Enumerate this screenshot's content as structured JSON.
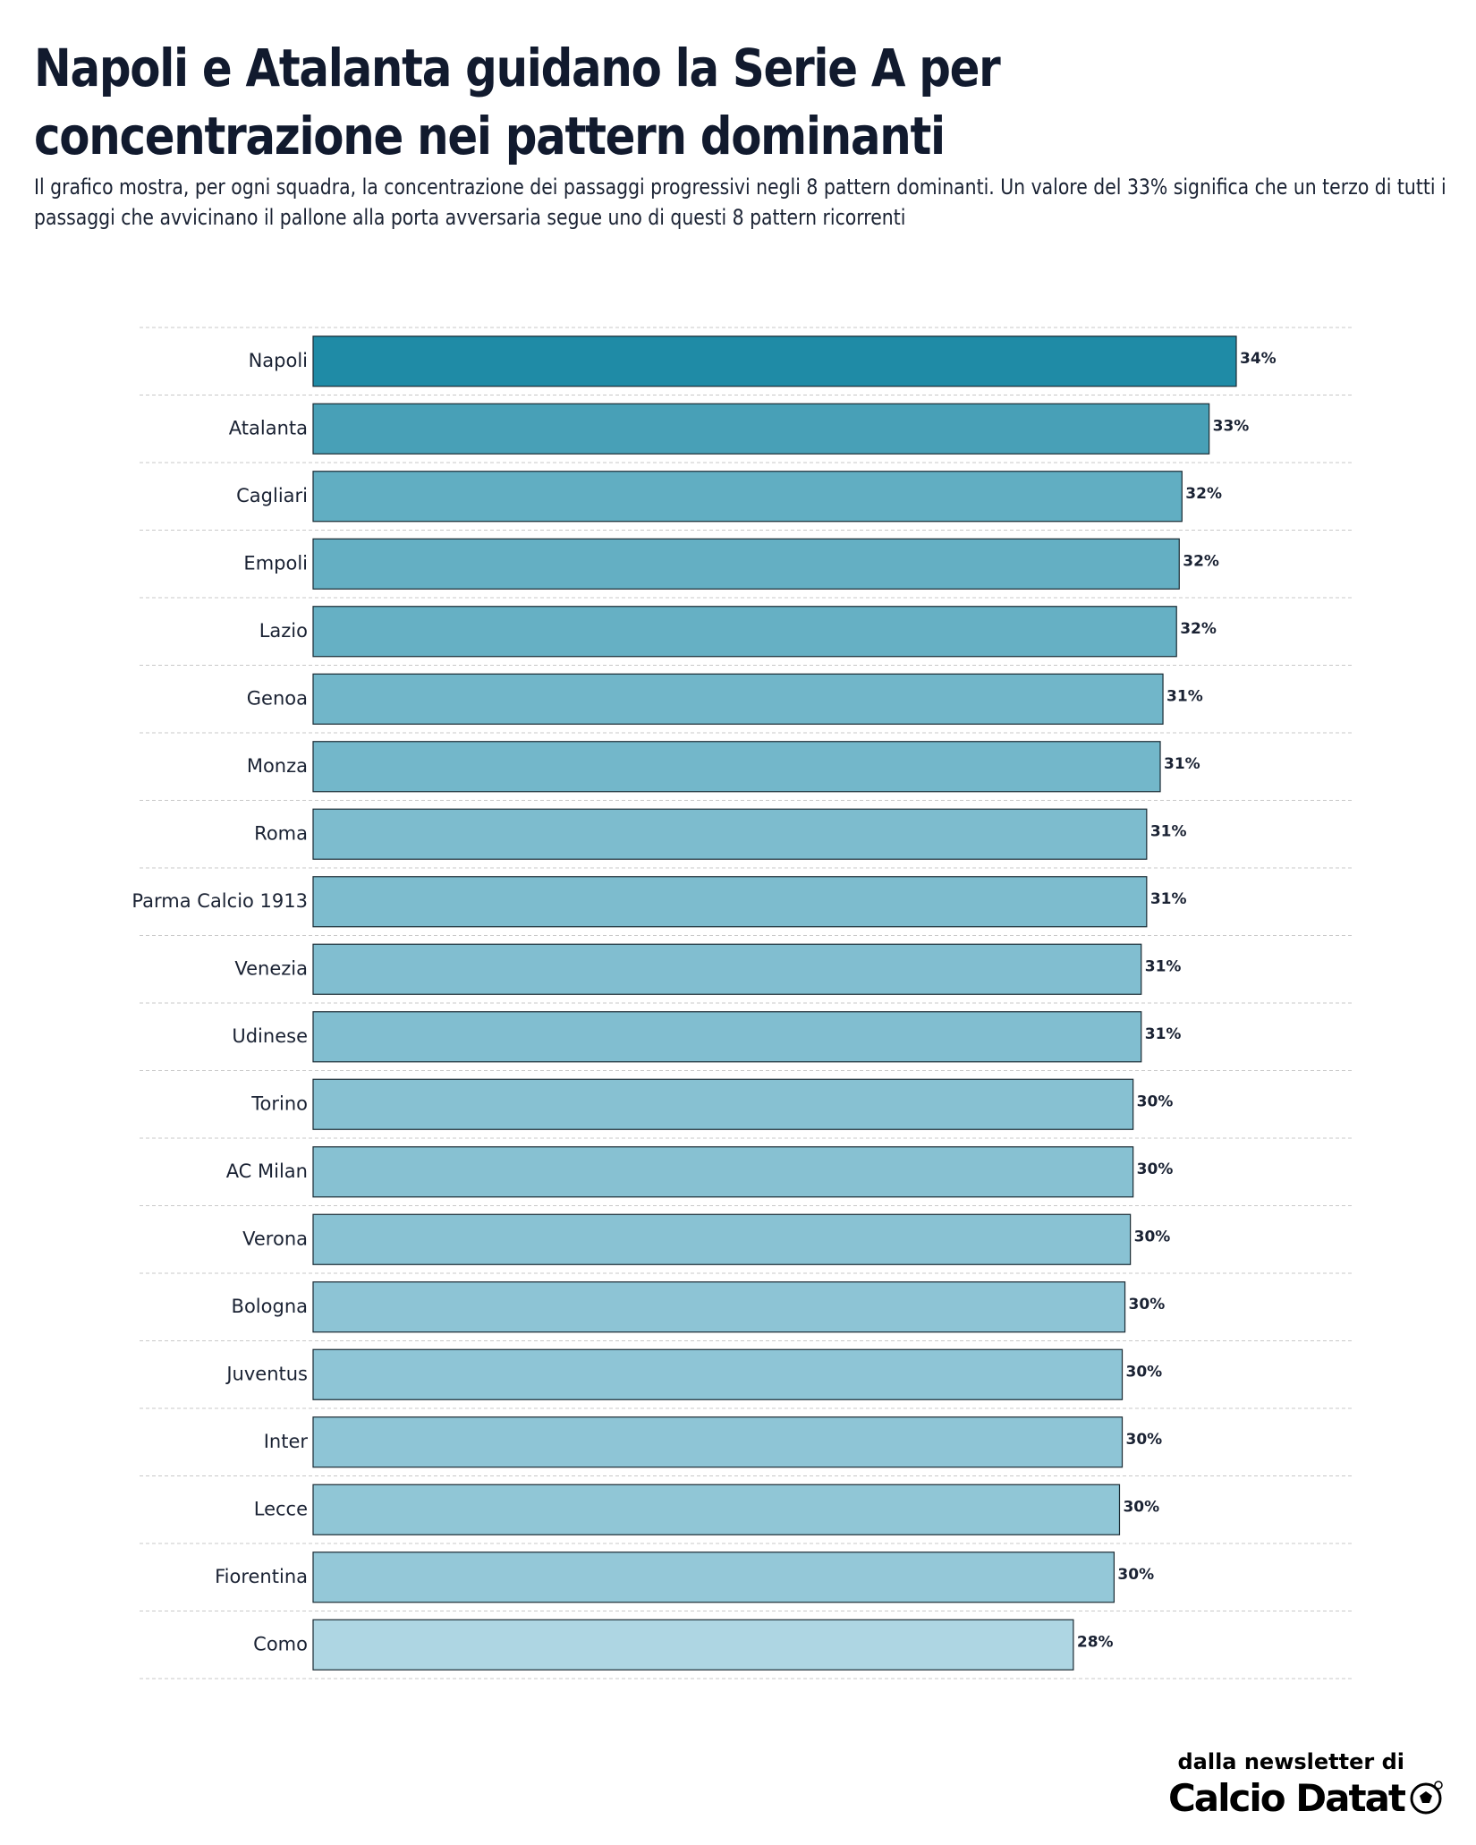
{
  "title": "Napoli e Atalanta guidano la Serie A per concentrazione nei pattern dominanti",
  "subtitle": "Il grafico mostra, per ogni squadra, la concentrazione dei passaggi progressivi negli 8 pattern dominanti. Un valore del 33% significa che un terzo di tutti i passaggi che avvicinano il pallone alla porta avversaria segue uno di questi 8 pattern ricorrenti",
  "branding": {
    "line1": "dalla newsletter di",
    "name": "Calcio Datat"
  },
  "colors": {
    "dark": "#1f8ba6",
    "light": "#aed6e3",
    "bar_edge": "#1a2a33",
    "grid": "#c8c8c8"
  },
  "chart_data": {
    "type": "bar",
    "orientation": "horizontal",
    "categories": [
      "Napoli",
      "Atalanta",
      "Cagliari",
      "Empoli",
      "Lazio",
      "Genoa",
      "Monza",
      "Roma",
      "Parma Calcio 1913",
      "Venezia",
      "Udinese",
      "Torino",
      "AC Milan",
      "Verona",
      "Bologna",
      "Juventus",
      "Inter",
      "Lecce",
      "Fiorentina",
      "Como"
    ],
    "values": [
      34.0,
      33.0,
      32.0,
      31.9,
      31.8,
      31.3,
      31.2,
      30.7,
      30.7,
      30.5,
      30.5,
      30.2,
      30.2,
      30.1,
      29.9,
      29.8,
      29.8,
      29.7,
      29.5,
      28.0
    ],
    "value_labels": [
      "34%",
      "33%",
      "32%",
      "32%",
      "32%",
      "31%",
      "31%",
      "31%",
      "31%",
      "31%",
      "31%",
      "30%",
      "30%",
      "30%",
      "30%",
      "30%",
      "30%",
      "30%",
      "30%",
      "28%"
    ],
    "xlim": [
      0,
      40
    ],
    "grid": "horizontal-dashed",
    "xlabel": "",
    "ylabel": ""
  }
}
